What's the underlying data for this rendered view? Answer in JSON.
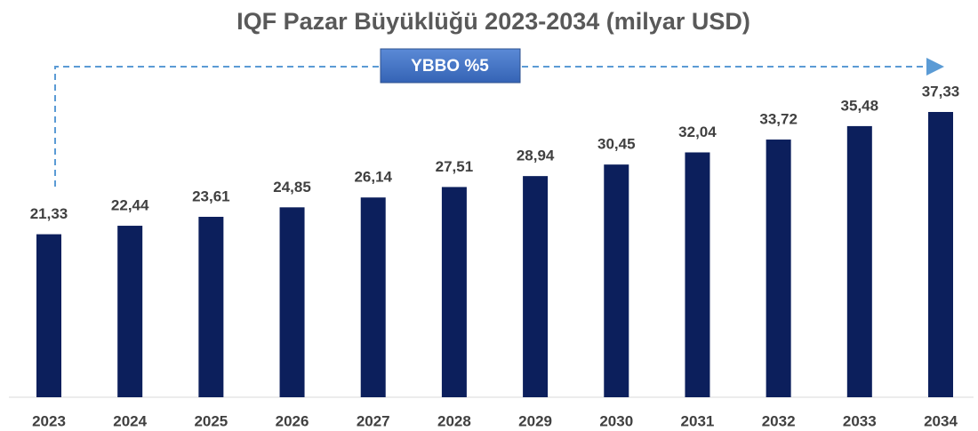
{
  "chart_data": {
    "type": "bar",
    "title": "IQF Pazar Büyüklüğü 2023-2034 (milyar USD)",
    "annotation": "YBBO %5",
    "categories": [
      "2023",
      "2024",
      "2025",
      "2026",
      "2027",
      "2028",
      "2029",
      "2030",
      "2031",
      "2032",
      "2033",
      "2034"
    ],
    "values": [
      21.33,
      22.44,
      23.61,
      24.85,
      26.14,
      27.51,
      28.94,
      30.45,
      32.04,
      33.72,
      35.48,
      37.33
    ],
    "value_labels": [
      "21,33",
      "22,44",
      "23,61",
      "24,85",
      "26,14",
      "27,51",
      "28,94",
      "30,45",
      "32,04",
      "33,72",
      "35,48",
      "37,33"
    ],
    "color": "#0c1f5c"
  }
}
